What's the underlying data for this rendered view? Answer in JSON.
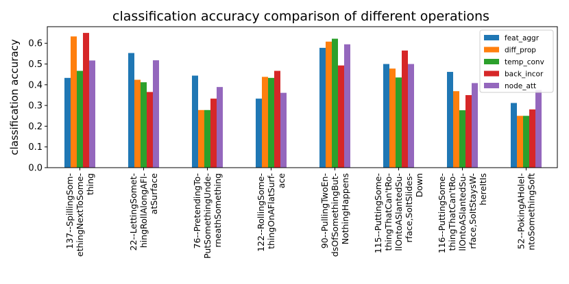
{
  "chart_data": {
    "type": "bar",
    "title": "classification accuracy comparison of different operations",
    "xlabel": "",
    "ylabel": "classification accuracy",
    "ylim": [
      0,
      0.68
    ],
    "yticks": [
      0.0,
      0.1,
      0.2,
      0.3,
      0.4,
      0.5,
      0.6
    ],
    "ytick_labels": [
      "0.0",
      "0.1",
      "0.2",
      "0.3",
      "0.4",
      "0.5",
      "0.6"
    ],
    "grid": false,
    "legend_position": "top-right",
    "categories": [
      [
        "137--SpillingSom-",
        "ethingNextToSome-",
        "thing"
      ],
      [
        "22--LettingSomet-",
        "hingRollAlongAFl-",
        "atSurface"
      ],
      [
        "76--PretendingTo-",
        "PutSomethingUnde-",
        "rneathSomething"
      ],
      [
        "122--RollingSome-",
        "thingOnAFlatSurf-",
        "ace"
      ],
      [
        "90--PullingTwoEn-",
        "dsOfSomethingBut-",
        "NothingHappens"
      ],
      [
        "115--PuttingSome-",
        "thingThatCan'tRo-",
        "llOntoASlantedSu-",
        "rface,SoItSlides-",
        "Down"
      ],
      [
        "116--PuttingSome-",
        "thingThatCan'tRo-",
        "llOntoASlantedSu-",
        "rface,SoItStaysW-",
        "hereItIs"
      ],
      [
        "52--PokingAHoleI-",
        "ntoSomethingSoft"
      ]
    ],
    "series": [
      {
        "name": "feat_aggr",
        "color": "#1f77b4",
        "values": [
          0.433,
          0.553,
          0.444,
          0.333,
          0.578,
          0.5,
          0.462,
          0.312
        ]
      },
      {
        "name": "diff_prop",
        "color": "#ff7f0e",
        "values": [
          0.633,
          0.424,
          0.278,
          0.438,
          0.608,
          0.478,
          0.369,
          0.25
        ]
      },
      {
        "name": "temp_conv",
        "color": "#2ca02c",
        "values": [
          0.467,
          0.412,
          0.278,
          0.433,
          0.622,
          0.435,
          0.277,
          0.25
        ]
      },
      {
        "name": "back_incor",
        "color": "#d62728",
        "values": [
          0.65,
          0.365,
          0.333,
          0.467,
          0.493,
          0.565,
          0.35,
          0.281
        ]
      },
      {
        "name": "node_att",
        "color": "#9467bd",
        "values": [
          0.517,
          0.518,
          0.389,
          0.361,
          0.595,
          0.5,
          0.408,
          0.375
        ]
      }
    ]
  }
}
